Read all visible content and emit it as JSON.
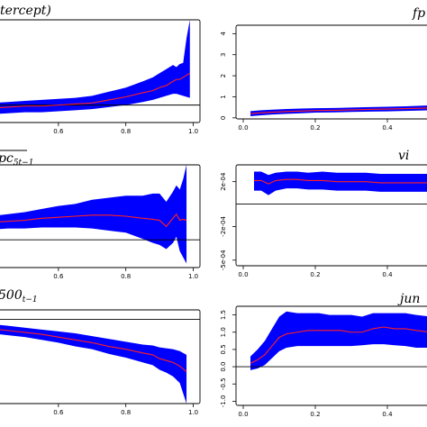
{
  "colors": {
    "band": "#0000ff",
    "line": "#ff2020",
    "axis": "#000000",
    "ref": "#000000",
    "background": "#ffffff"
  },
  "chart_data": [
    {
      "type": "area",
      "title_main": "tercept)",
      "title_sub": "",
      "xlim": [
        0.4,
        1.02
      ],
      "ylim": [
        0,
        1
      ],
      "x_ticks": [
        {
          "v": 0.6,
          "label": "0.6"
        },
        {
          "v": 0.8,
          "label": "0.8"
        },
        {
          "v": 1.0,
          "label": "1.0"
        }
      ],
      "y_ticks": [],
      "ref_line": 0.17,
      "x": [
        0.4,
        0.45,
        0.5,
        0.55,
        0.6,
        0.65,
        0.7,
        0.75,
        0.8,
        0.85,
        0.88,
        0.9,
        0.92,
        0.94,
        0.95,
        0.96,
        0.97,
        0.98,
        0.99
      ],
      "mid": [
        0.14,
        0.15,
        0.16,
        0.16,
        0.17,
        0.18,
        0.19,
        0.22,
        0.25,
        0.29,
        0.31,
        0.34,
        0.36,
        0.4,
        0.42,
        0.42,
        0.44,
        0.46,
        0.48
      ],
      "lower": [
        0.08,
        0.09,
        0.1,
        0.1,
        0.11,
        0.12,
        0.13,
        0.15,
        0.17,
        0.2,
        0.22,
        0.24,
        0.26,
        0.28,
        0.28,
        0.27,
        0.26,
        0.25,
        0.24
      ],
      "upper": [
        0.19,
        0.2,
        0.21,
        0.22,
        0.23,
        0.24,
        0.26,
        0.3,
        0.34,
        0.4,
        0.44,
        0.48,
        0.52,
        0.56,
        0.54,
        0.57,
        0.58,
        0.82,
        1.0
      ]
    },
    {
      "type": "area",
      "title_main": "fp",
      "title_sub": "",
      "xlim": [
        -0.02,
        0.55
      ],
      "ylim": [
        -0.05,
        4.4
      ],
      "x_ticks": [
        {
          "v": 0.0,
          "label": "0.0"
        },
        {
          "v": 0.2,
          "label": "0.2"
        },
        {
          "v": 0.4,
          "label": "0.4"
        }
      ],
      "y_ticks": [
        {
          "v": 0,
          "label": "0"
        },
        {
          "v": 1,
          "label": "1"
        },
        {
          "v": 2,
          "label": "2"
        },
        {
          "v": 3,
          "label": "3"
        },
        {
          "v": 4,
          "label": "4"
        }
      ],
      "ref_line": null,
      "x": [
        0.02,
        0.05,
        0.08,
        0.12,
        0.16,
        0.2,
        0.25,
        0.3,
        0.35,
        0.4,
        0.45,
        0.5,
        0.55
      ],
      "mid": [
        0.2,
        0.24,
        0.27,
        0.3,
        0.32,
        0.35,
        0.36,
        0.38,
        0.4,
        0.42,
        0.44,
        0.46,
        0.48
      ],
      "lower": [
        0.08,
        0.12,
        0.16,
        0.19,
        0.22,
        0.25,
        0.26,
        0.28,
        0.3,
        0.31,
        0.33,
        0.35,
        0.37
      ],
      "upper": [
        0.32,
        0.36,
        0.39,
        0.42,
        0.44,
        0.46,
        0.47,
        0.49,
        0.51,
        0.53,
        0.55,
        0.58,
        0.6
      ]
    },
    {
      "type": "area",
      "title_main": "pc",
      "title_sub": "5t−1",
      "xlim": [
        0.4,
        1.02
      ],
      "ylim": [
        0,
        1
      ],
      "x_ticks": [
        {
          "v": 0.6,
          "label": "0.6"
        },
        {
          "v": 0.8,
          "label": "0.8"
        },
        {
          "v": 1.0,
          "label": "1.0"
        }
      ],
      "y_ticks": [],
      "ref_line": 0.27,
      "x": [
        0.4,
        0.45,
        0.5,
        0.55,
        0.6,
        0.65,
        0.7,
        0.75,
        0.8,
        0.85,
        0.88,
        0.9,
        0.92,
        0.94,
        0.95,
        0.96,
        0.97,
        0.98
      ],
      "mid": [
        0.44,
        0.45,
        0.46,
        0.48,
        0.49,
        0.5,
        0.51,
        0.51,
        0.5,
        0.48,
        0.47,
        0.46,
        0.4,
        0.48,
        0.52,
        0.46,
        0.47,
        0.46
      ],
      "lower": [
        0.37,
        0.38,
        0.38,
        0.39,
        0.39,
        0.39,
        0.38,
        0.36,
        0.34,
        0.28,
        0.24,
        0.22,
        0.18,
        0.24,
        0.3,
        0.16,
        0.1,
        0.04
      ],
      "upper": [
        0.5,
        0.52,
        0.54,
        0.57,
        0.6,
        0.62,
        0.66,
        0.68,
        0.7,
        0.7,
        0.72,
        0.72,
        0.64,
        0.74,
        0.8,
        0.76,
        0.86,
        1.0
      ]
    },
    {
      "type": "area",
      "title_main": "vi",
      "title_sub": "",
      "xlim": [
        -0.02,
        0.55
      ],
      "ylim": [
        -0.00055,
        0.00035
      ],
      "x_ticks": [
        {
          "v": 0.0,
          "label": "0.0"
        },
        {
          "v": 0.2,
          "label": "0.2"
        },
        {
          "v": 0.4,
          "label": "0.4"
        }
      ],
      "y_ticks": [
        {
          "v": 0.0002,
          "label": "2e-04"
        },
        {
          "v": -0.0002,
          "label": "-2e-04"
        },
        {
          "v": -0.0005,
          "label": "-5e-04"
        }
      ],
      "ref_line": 0.0,
      "x": [
        0.03,
        0.05,
        0.07,
        0.09,
        0.12,
        0.15,
        0.18,
        0.22,
        0.26,
        0.3,
        0.34,
        0.38,
        0.42,
        0.46,
        0.5,
        0.55
      ],
      "mid": [
        0.00021,
        0.00021,
        0.00018,
        0.00021,
        0.00022,
        0.00022,
        0.00021,
        0.00021,
        0.0002,
        0.0002,
        0.0002,
        0.00019,
        0.00019,
        0.00019,
        0.00019,
        0.00019
      ],
      "lower": [
        0.00012,
        0.00012,
        8e-05,
        0.00012,
        0.00014,
        0.00014,
        0.00013,
        0.00013,
        0.00012,
        0.00012,
        0.00012,
        0.00011,
        0.00011,
        0.00011,
        0.00011,
        0.00011
      ],
      "upper": [
        0.00029,
        0.00029,
        0.00026,
        0.00028,
        0.00029,
        0.00029,
        0.00028,
        0.00029,
        0.00028,
        0.00028,
        0.00028,
        0.00027,
        0.00027,
        0.00027,
        0.00027,
        0.00027
      ]
    },
    {
      "type": "area",
      "title_main": "500",
      "title_sub": "t−1",
      "xlim": [
        0.4,
        1.02
      ],
      "ylim": [
        0,
        1
      ],
      "x_ticks": [
        {
          "v": 0.6,
          "label": "0.6"
        },
        {
          "v": 0.8,
          "label": "0.8"
        },
        {
          "v": 1.0,
          "label": "1.0"
        }
      ],
      "y_ticks": [],
      "ref_line": 0.9,
      "x": [
        0.4,
        0.45,
        0.5,
        0.55,
        0.6,
        0.65,
        0.7,
        0.75,
        0.8,
        0.85,
        0.88,
        0.9,
        0.92,
        0.94,
        0.96,
        0.98
      ],
      "mid": [
        0.8,
        0.78,
        0.76,
        0.74,
        0.71,
        0.68,
        0.65,
        0.61,
        0.58,
        0.54,
        0.52,
        0.48,
        0.46,
        0.44,
        0.4,
        0.34
      ],
      "lower": [
        0.75,
        0.73,
        0.71,
        0.68,
        0.65,
        0.61,
        0.58,
        0.53,
        0.49,
        0.44,
        0.41,
        0.36,
        0.33,
        0.29,
        0.22,
        0.0
      ],
      "upper": [
        0.85,
        0.83,
        0.81,
        0.79,
        0.77,
        0.75,
        0.72,
        0.69,
        0.66,
        0.63,
        0.62,
        0.6,
        0.59,
        0.58,
        0.56,
        0.52
      ]
    },
    {
      "type": "area",
      "title_main": "jun",
      "title_sub": "",
      "xlim": [
        -0.02,
        0.55
      ],
      "ylim": [
        -1.12,
        1.75
      ],
      "x_ticks": [
        {
          "v": 0.0,
          "label": "0.0"
        },
        {
          "v": 0.2,
          "label": "0.2"
        },
        {
          "v": 0.4,
          "label": "0.4"
        }
      ],
      "y_ticks": [
        {
          "v": -1.0,
          "label": "-1.0"
        },
        {
          "v": -0.5,
          "label": "-0.5"
        },
        {
          "v": 0.0,
          "label": "0.0"
        },
        {
          "v": 0.5,
          "label": "0.5"
        },
        {
          "v": 1.0,
          "label": "1.0"
        },
        {
          "v": 1.5,
          "label": "1.5"
        }
      ],
      "ref_line": 0.0,
      "x": [
        0.02,
        0.04,
        0.06,
        0.08,
        0.1,
        0.12,
        0.15,
        0.18,
        0.21,
        0.24,
        0.27,
        0.3,
        0.33,
        0.36,
        0.39,
        0.42,
        0.45,
        0.48,
        0.52,
        0.55
      ],
      "mid": [
        0.1,
        0.2,
        0.35,
        0.6,
        0.85,
        0.95,
        1.0,
        1.05,
        1.05,
        1.05,
        1.05,
        1.0,
        1.0,
        1.1,
        1.15,
        1.1,
        1.1,
        1.05,
        1.0,
        1.0
      ],
      "lower": [
        -0.1,
        -0.05,
        0.05,
        0.25,
        0.45,
        0.55,
        0.6,
        0.6,
        0.6,
        0.6,
        0.6,
        0.6,
        0.62,
        0.65,
        0.65,
        0.62,
        0.6,
        0.55,
        0.55,
        0.52
      ],
      "upper": [
        0.3,
        0.5,
        0.75,
        1.1,
        1.45,
        1.6,
        1.55,
        1.55,
        1.55,
        1.5,
        1.5,
        1.5,
        1.45,
        1.55,
        1.55,
        1.55,
        1.55,
        1.5,
        1.45,
        1.45
      ]
    }
  ]
}
